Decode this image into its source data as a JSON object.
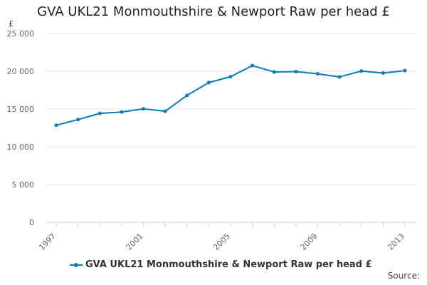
{
  "chart_data": {
    "type": "line",
    "title": "GVA UKL21 Monmouthshire & Newport Raw per head £",
    "y_unit": "£",
    "x": [
      1997,
      1998,
      1999,
      2000,
      2001,
      2002,
      2003,
      2004,
      2005,
      2006,
      2007,
      2008,
      2009,
      2010,
      2011,
      2012,
      2013
    ],
    "x_tick_labels": [
      "1997",
      "2001",
      "2005",
      "2009",
      "2013"
    ],
    "series": [
      {
        "name": "GVA UKL21 Monmouthshire & Newport Raw per head £",
        "values": [
          12850,
          13600,
          14420,
          14600,
          15020,
          14700,
          16800,
          18500,
          19280,
          20750,
          19900,
          19950,
          19660,
          19250,
          20030,
          19760,
          20080
        ]
      }
    ],
    "ylim": [
      0,
      25000
    ],
    "y_ticks": [
      0,
      5000,
      10000,
      15000,
      20000,
      25000
    ],
    "y_tick_labels": [
      "0",
      "5 000",
      "10 000",
      "15 000",
      "20 000",
      "25 000"
    ],
    "grid": true,
    "legend_position": "bottom",
    "series_color": "#0a7bb8",
    "grid_color": "#e6e6e6",
    "source_label": "Source:"
  }
}
